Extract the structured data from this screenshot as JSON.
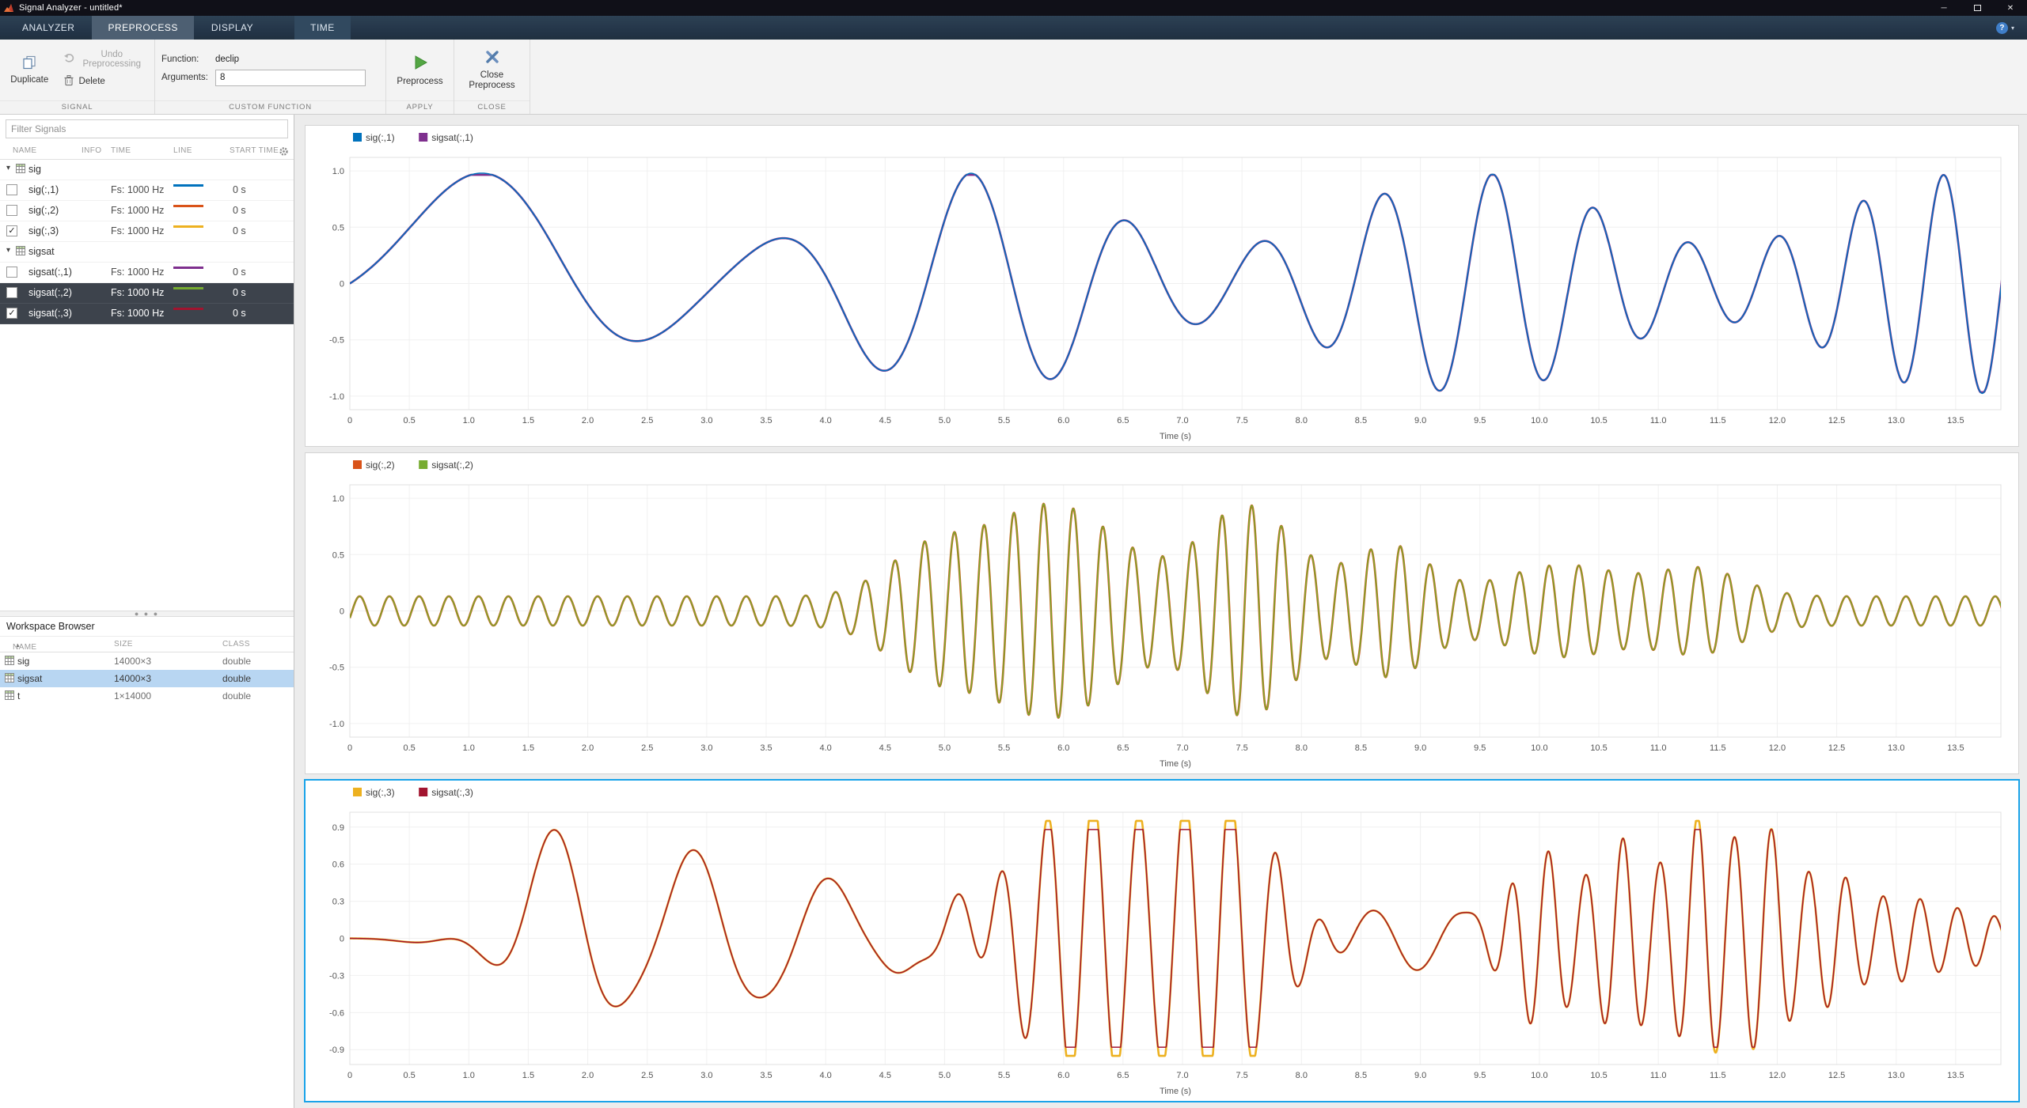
{
  "window": {
    "title": "Signal Analyzer - untitled*"
  },
  "icons": {
    "minimize": "─",
    "close": "✕",
    "help": "?",
    "caret_down": "▾",
    "check": "✓",
    "sort_asc": "▲",
    "dots": "● ● ●"
  },
  "tab_bar": {
    "tabs": [
      {
        "label": "ANALYZER",
        "active": false
      },
      {
        "label": "PREPROCESS",
        "active": true
      },
      {
        "label": "DISPLAY",
        "active": false
      },
      {
        "label": "TIME",
        "active": false
      }
    ]
  },
  "ribbon": {
    "groups": [
      {
        "label": "SIGNAL"
      },
      {
        "label": "CUSTOM FUNCTION"
      },
      {
        "label": "APPLY"
      },
      {
        "label": "CLOSE"
      }
    ],
    "duplicate_label": "Duplicate",
    "undo_label": "Undo Preprocessing",
    "delete_label": "Delete",
    "function_label": "Function:",
    "function_value": "declip",
    "arguments_label": "Arguments:",
    "arguments_value": "8",
    "preprocess_label": "Preprocess",
    "close_preprocess_label": "Close Preprocess"
  },
  "signal_panel": {
    "filter_placeholder": "Filter Signals",
    "columns": [
      "NAME",
      "INFO",
      "TIME",
      "LINE",
      "START TIME"
    ],
    "rows": [
      {
        "type": "group",
        "name": "sig"
      },
      {
        "type": "signal",
        "name": "sig(:,1)",
        "checked": false,
        "time": "Fs: 1000 Hz",
        "line_color": "#0072BD",
        "start": "0 s",
        "selected": false
      },
      {
        "type": "signal",
        "name": "sig(:,2)",
        "checked": false,
        "time": "Fs: 1000 Hz",
        "line_color": "#D95319",
        "start": "0 s",
        "selected": false
      },
      {
        "type": "signal",
        "name": "sig(:,3)",
        "checked": true,
        "time": "Fs: 1000 Hz",
        "line_color": "#EDB120",
        "start": "0 s",
        "selected": false
      },
      {
        "type": "group",
        "name": "sigsat"
      },
      {
        "type": "signal",
        "name": "sigsat(:,1)",
        "checked": false,
        "time": "Fs: 1000 Hz",
        "line_color": "#7E2F8E",
        "start": "0 s",
        "selected": false
      },
      {
        "type": "signal",
        "name": "sigsat(:,2)",
        "checked": false,
        "time": "Fs: 1000 Hz",
        "line_color": "#77AC30",
        "start": "0 s",
        "selected": true
      },
      {
        "type": "signal",
        "name": "sigsat(:,3)",
        "checked": true,
        "time": "Fs: 1000 Hz",
        "line_color": "#A2142F",
        "start": "0 s",
        "selected": true
      }
    ]
  },
  "workspace": {
    "title": "Workspace Browser",
    "columns": [
      "NAME",
      "SIZE",
      "CLASS"
    ],
    "rows": [
      {
        "name": "sig",
        "size": "14000×3",
        "class": "double",
        "selected": false
      },
      {
        "name": "sigsat",
        "size": "14000×3",
        "class": "double",
        "selected": true
      },
      {
        "name": "t",
        "size": "1×14000",
        "class": "double",
        "selected": false
      }
    ]
  },
  "chart_common": {
    "type": "line",
    "xlabel": "Time (s)",
    "xlim": [
      0,
      13.88
    ],
    "xtick_step": 0.5,
    "xtick_max": 13.5,
    "grid": true,
    "sample_rate_hz": 1000,
    "duration_s": 14
  },
  "chart_data": [
    {
      "name": "display-1",
      "selected": false,
      "legend": [
        {
          "label": "sig(:,1)",
          "color": "#0072BD"
        },
        {
          "label": "sigsat(:,1)",
          "color": "#7E2F8E"
        }
      ],
      "ylim": [
        -1.12,
        1.12
      ],
      "yticks": [
        1.0,
        0.5,
        0,
        -0.5,
        -1.0
      ],
      "ytick_labels": [
        "1.0",
        "0.5",
        "0",
        "-0.5",
        "-1.0"
      ],
      "signals": [
        {
          "name": "sigsat(:,1)",
          "color": "#7E2F8E",
          "width": 2.6,
          "clip": [
            -0.965,
            0.965
          ],
          "components": [
            {
              "f0": 0.17,
              "k": 0.05,
              "phase": 0,
              "env": {
                "base": 0.66,
                "sin": [
                  0.32,
                  0.24,
                  -0.1
                ]
              }
            }
          ]
        },
        {
          "name": "sig(:,1)",
          "color": "#0072BD",
          "width": 1.5,
          "components": [
            {
              "f0": 0.17,
              "k": 0.05,
              "phase": 0,
              "env": {
                "base": 0.66,
                "sin": [
                  0.32,
                  0.24,
                  -0.1
                ]
              }
            }
          ]
        }
      ]
    },
    {
      "name": "display-2",
      "selected": false,
      "legend": [
        {
          "label": "sig(:,2)",
          "color": "#D95319"
        },
        {
          "label": "sigsat(:,2)",
          "color": "#77AC30"
        }
      ],
      "ylim": [
        -1.12,
        1.12
      ],
      "yticks": [
        1.0,
        0.5,
        0,
        -0.5,
        -1.0
      ],
      "ytick_labels": [
        "1.0",
        "0.5",
        "0",
        "-0.5",
        "-1.0"
      ],
      "signals": [
        {
          "name": "sig(:,2)",
          "color": "#D95319",
          "width": 2.6,
          "components": [
            {
              "f0": 4,
              "phase": -0.5,
              "env": {
                "base": 0.13,
                "gauss": [
                  [
                    0.82,
                    5.9,
                    0.8
                  ],
                  [
                    0.8,
                    7.55,
                    0.55
                  ],
                  [
                    0.45,
                    8.75,
                    0.45
                  ],
                  [
                    0.35,
                    4.85,
                    0.5
                  ],
                  [
                    0.28,
                    10.2,
                    0.7
                  ],
                  [
                    0.24,
                    11.35,
                    0.5
                  ]
                ]
              }
            }
          ]
        },
        {
          "name": "sigsat(:,2)",
          "color": "#77AC30",
          "width": 1.5,
          "clip": [
            -0.97,
            0.97
          ],
          "components": [
            {
              "f0": 4,
              "phase": -0.5,
              "env": {
                "base": 0.13,
                "gauss": [
                  [
                    0.82,
                    5.9,
                    0.8
                  ],
                  [
                    0.8,
                    7.55,
                    0.55
                  ],
                  [
                    0.45,
                    8.75,
                    0.45
                  ],
                  [
                    0.35,
                    4.85,
                    0.5
                  ],
                  [
                    0.28,
                    10.2,
                    0.7
                  ],
                  [
                    0.24,
                    11.35,
                    0.5
                  ]
                ]
              }
            }
          ]
        }
      ]
    },
    {
      "name": "display-3",
      "selected": true,
      "legend": [
        {
          "label": "sig(:,3)",
          "color": "#EDB120"
        },
        {
          "label": "sigsat(:,3)",
          "color": "#A2142F"
        }
      ],
      "ylim": [
        -1.02,
        1.02
      ],
      "yticks": [
        0.9,
        0.6,
        0.3,
        0,
        -0.3,
        -0.6,
        -0.9
      ],
      "ytick_labels": [
        "0.9",
        "0.6",
        "0.3",
        "0",
        "-0.3",
        "-0.6",
        "-0.9"
      ],
      "signals": [
        {
          "name": "sig(:,3)",
          "color": "#EDB120",
          "width": 2.6,
          "clip": [
            -0.95,
            0.95
          ],
          "components": [
            {
              "f0": 0.85,
              "phase": -7.5,
              "env": {
                "gauss": [
                  [
                    0.9,
                    1.8,
                    0.55
                  ],
                  [
                    0.7,
                    2.95,
                    0.5
                  ],
                  [
                    0.5,
                    3.9,
                    0.5
                  ],
                  [
                    0.25,
                    4.8,
                    0.45
                  ],
                  [
                    0.1,
                    5.3,
                    0.4
                  ]
                ]
              }
            },
            {
              "f0": 2.6,
              "phase": 0,
              "env": {
                "gauss": [
                  [
                    1.15,
                    6.15,
                    0.75
                  ],
                  [
                    1.15,
                    7.35,
                    0.6
                  ]
                ]
              }
            },
            {
              "f0": 1.3,
              "phase": 0.5,
              "env": {
                "gauss": [
                  [
                    0.26,
                    8.8,
                    0.45
                  ],
                  [
                    0.16,
                    9.35,
                    0.3
                  ]
                ]
              }
            },
            {
              "f0": 3.2,
              "phase": 0,
              "env": {
                "gauss": [
                  [
                    0.72,
                    10.0,
                    0.35
                  ],
                  [
                    0.78,
                    10.7,
                    0.32
                  ],
                  [
                    0.95,
                    11.35,
                    0.32
                  ],
                  [
                    0.85,
                    11.9,
                    0.3
                  ],
                  [
                    0.5,
                    12.45,
                    0.3
                  ],
                  [
                    0.28,
                    13.0,
                    0.35
                  ],
                  [
                    0.22,
                    13.6,
                    0.5
                  ]
                ]
              }
            },
            {
              "f0": 0.55,
              "phase": 3.4,
              "env": {
                "gauss": [
                  [
                    0.08,
                    0.85,
                    0.4
                  ]
                ]
              }
            }
          ]
        },
        {
          "name": "sigsat(:,3)",
          "color": "#A2142F",
          "width": 1.5,
          "clip": [
            -0.88,
            0.88
          ],
          "components": [
            {
              "f0": 0.85,
              "phase": -7.5,
              "env": {
                "gauss": [
                  [
                    0.9,
                    1.8,
                    0.55
                  ],
                  [
                    0.7,
                    2.95,
                    0.5
                  ],
                  [
                    0.5,
                    3.9,
                    0.5
                  ],
                  [
                    0.25,
                    4.8,
                    0.45
                  ],
                  [
                    0.1,
                    5.3,
                    0.4
                  ]
                ]
              }
            },
            {
              "f0": 2.6,
              "phase": 0,
              "env": {
                "gauss": [
                  [
                    1.15,
                    6.15,
                    0.75
                  ],
                  [
                    1.15,
                    7.35,
                    0.6
                  ]
                ]
              }
            },
            {
              "f0": 1.3,
              "phase": 0.5,
              "env": {
                "gauss": [
                  [
                    0.26,
                    8.8,
                    0.45
                  ],
                  [
                    0.16,
                    9.35,
                    0.3
                  ]
                ]
              }
            },
            {
              "f0": 3.2,
              "phase": 0,
              "env": {
                "gauss": [
                  [
                    0.72,
                    10.0,
                    0.35
                  ],
                  [
                    0.78,
                    10.7,
                    0.32
                  ],
                  [
                    0.95,
                    11.35,
                    0.32
                  ],
                  [
                    0.85,
                    11.9,
                    0.3
                  ],
                  [
                    0.5,
                    12.45,
                    0.3
                  ],
                  [
                    0.28,
                    13.0,
                    0.35
                  ],
                  [
                    0.22,
                    13.6,
                    0.5
                  ]
                ]
              }
            },
            {
              "f0": 0.55,
              "phase": 3.4,
              "env": {
                "gauss": [
                  [
                    0.08,
                    0.85,
                    0.4
                  ]
                ]
              }
            }
          ]
        }
      ]
    }
  ]
}
